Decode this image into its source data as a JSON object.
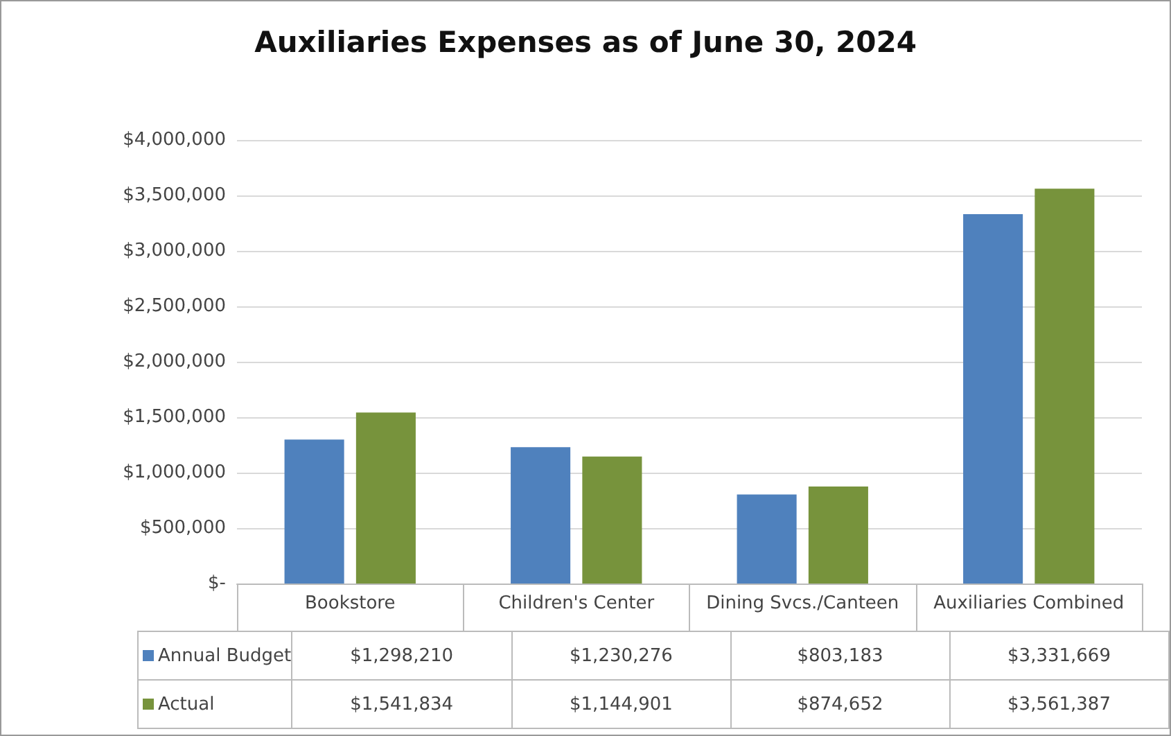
{
  "chart_data": {
    "type": "bar",
    "title": "Auxiliaries Expenses as of June 30, 2024",
    "categories": [
      "Bookstore",
      "Children's Center",
      "Dining Svcs./Canteen",
      "Auxiliaries Combined"
    ],
    "series": [
      {
        "name": "Annual Budget",
        "color": "#4f81bd",
        "values": [
          1298210,
          1230276,
          803183,
          3331669
        ],
        "value_labels": [
          "$1,298,210",
          "$1,230,276",
          "$803,183",
          "$3,331,669"
        ]
      },
      {
        "name": "Actual",
        "color": "#77933c",
        "values": [
          1541834,
          1144901,
          874652,
          3561387
        ],
        "value_labels": [
          "$1,541,834",
          "$1,144,901",
          "$874,652",
          "$3,561,387"
        ]
      }
    ],
    "ylim": [
      0,
      4000000
    ],
    "yticks": [
      {
        "value": 0,
        "label": "$-"
      },
      {
        "value": 500000,
        "label": "$500,000"
      },
      {
        "value": 1000000,
        "label": "$1,000,000"
      },
      {
        "value": 1500000,
        "label": "$1,500,000"
      },
      {
        "value": 2000000,
        "label": "$2,000,000"
      },
      {
        "value": 2500000,
        "label": "$2,500,000"
      },
      {
        "value": 3000000,
        "label": "$3,000,000"
      },
      {
        "value": 3500000,
        "label": "$3,500,000"
      },
      {
        "value": 4000000,
        "label": "$4,000,000"
      }
    ],
    "grid": "y",
    "legend": "bottom left"
  }
}
